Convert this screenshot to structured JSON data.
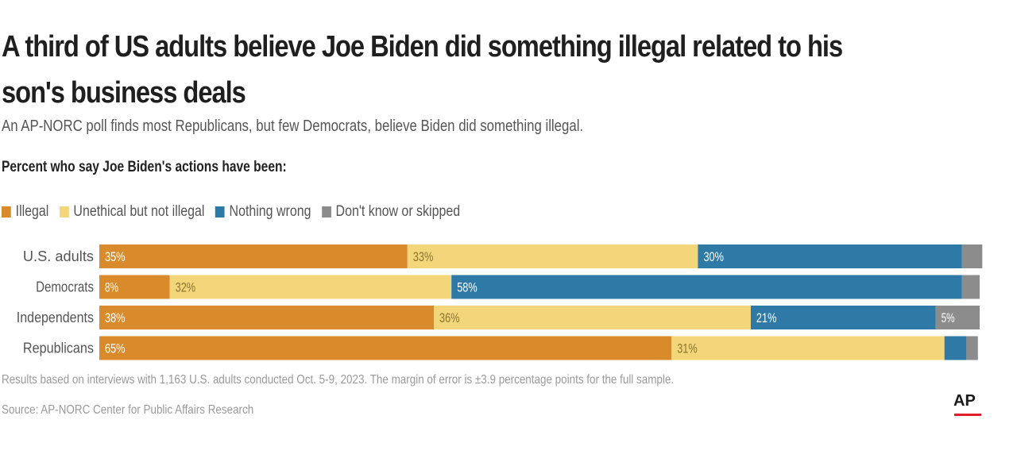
{
  "title": "A third of US adults believe Joe Biden did something illegal related to his son's business deals",
  "subtitle": "An AP-NORC poll finds most Republicans, but few Democrats, believe Biden did something illegal.",
  "measure": "Percent who say Joe Biden's actions have been:",
  "note": "Results based on interviews with 1,163 U.S. adults conducted Oct. 5-9, 2023. The margin of error is ±3.9 percentage points for the full sample.",
  "source": "Source: AP-NORC Center for Public Affairs Research",
  "logo": "AP",
  "colors": {
    "illegal": "#d98b2b",
    "unethical": "#f3d57a",
    "nothing_wrong": "#2f79a6",
    "dont_know": "#8c8c8c"
  },
  "chart_data": {
    "type": "bar",
    "orientation": "horizontal",
    "stacked": true,
    "xlim": [
      0,
      100
    ],
    "grid": false,
    "legend_position": "top-left",
    "categories": [
      "U.S. adults",
      "Democrats",
      "Independents",
      "Republicans"
    ],
    "series": [
      {
        "name": "Illegal",
        "color": "#d98b2b",
        "values": [
          35,
          8,
          38,
          65
        ],
        "labels": [
          "35%",
          "8%",
          "38%",
          "65%"
        ]
      },
      {
        "name": "Unethical but not illegal",
        "color": "#f3d57a",
        "values": [
          33,
          32,
          36,
          31
        ],
        "labels": [
          "33%",
          "32%",
          "36%",
          "31%"
        ]
      },
      {
        "name": "Nothing wrong",
        "color": "#2f79a6",
        "values": [
          30,
          58,
          21,
          2.5
        ],
        "labels": [
          "30%",
          "58%",
          "21%",
          ""
        ]
      },
      {
        "name": "Don't know or skipped",
        "color": "#8c8c8c",
        "values": [
          2.3,
          2,
          5,
          1.3
        ],
        "labels": [
          "",
          "",
          "5%",
          ""
        ]
      }
    ]
  }
}
